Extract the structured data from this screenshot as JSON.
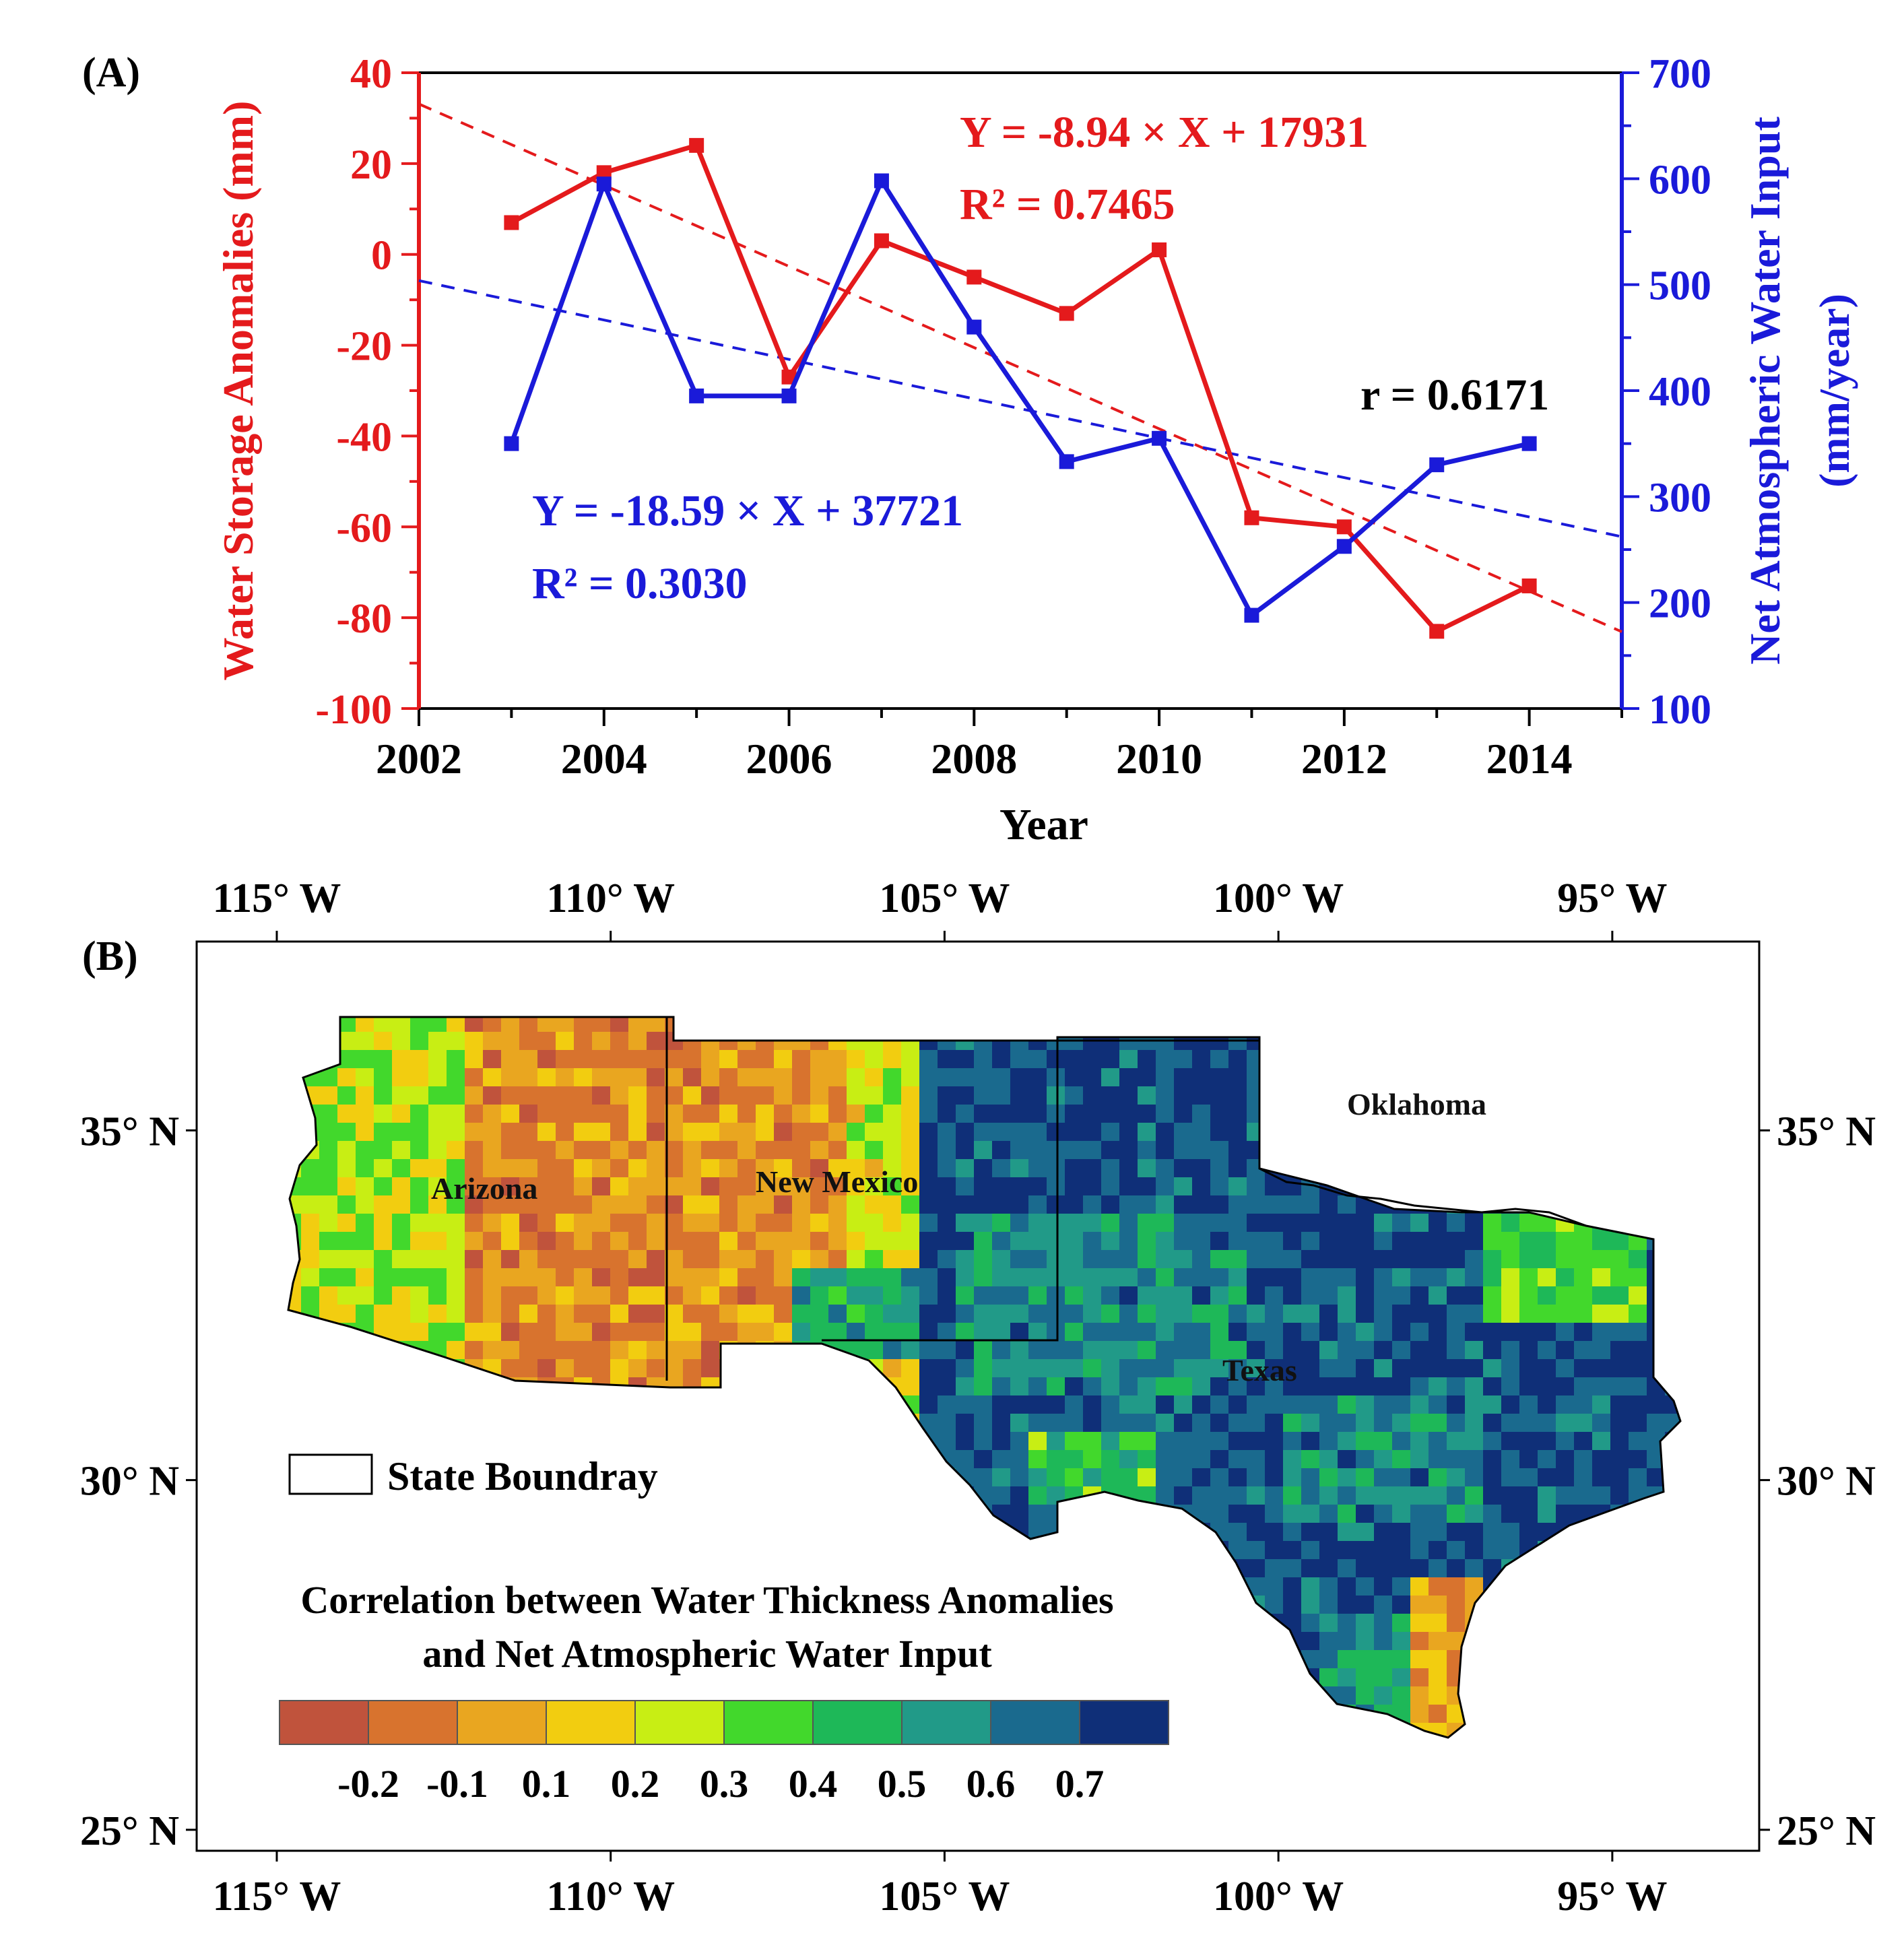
{
  "panel_a": {
    "label": "(A)",
    "xlabel": "Year",
    "x_ticks": [
      "2002",
      "2004",
      "2006",
      "2008",
      "2010",
      "2012",
      "2014"
    ],
    "y_left_label": "Water Storage Anomalies (mm)",
    "y_left_ticks": [
      "40",
      "20",
      "0",
      "-20",
      "-40",
      "-60",
      "-80",
      "-100"
    ],
    "y_right_label_1": "Net Atmospheric Water Input",
    "y_right_label_2": "(mm/year)",
    "y_right_ticks": [
      "700",
      "600",
      "500",
      "400",
      "300",
      "200",
      "100"
    ],
    "eq_red_1": "Y = -8.94 × X + 17931",
    "eq_red_2": "R² = 0.7465",
    "eq_blue_1": "Y = -18.59 × X + 37721",
    "eq_blue_2": "R² = 0.3030",
    "r_label": "r = 0.6171"
  },
  "panel_b": {
    "label": "(B)",
    "lon_ticks": [
      "115° W",
      "110° W",
      "105° W",
      "100° W",
      "95° W"
    ],
    "lat_ticks": [
      "35° N",
      "30° N",
      "25° N"
    ],
    "states": {
      "arizona": "Arizona",
      "new_mexico": "New Mexico",
      "oklahoma": "Oklahoma",
      "texas": "Texas"
    },
    "legend_boundary": "State Boundray",
    "colorbar_title_1": "Correlation between Water Thickness Anomalies",
    "colorbar_title_2": "and Net Atmospheric Water Input",
    "colorbar_ticks": [
      "-0.2",
      "-0.1",
      "0.1",
      "0.2",
      "0.3",
      "0.4",
      "0.5",
      "0.6",
      "0.7"
    ],
    "colorbar_colors": [
      "#c0533c",
      "#d8732e",
      "#e9a620",
      "#f2cd10",
      "#c8ee14",
      "#42d82c",
      "#1eb858",
      "#219a88",
      "#1a6a8e",
      "#0f2f78"
    ]
  },
  "chart_data": [
    {
      "type": "line",
      "title": "",
      "xlabel": "Year",
      "x": [
        2003,
        2004,
        2005,
        2006,
        2007,
        2008,
        2009,
        2010,
        2011,
        2012,
        2013,
        2014
      ],
      "xlim": [
        2002,
        2015
      ],
      "series": [
        {
          "name": "Water Storage Anomalies (mm)",
          "axis": "left",
          "color": "#e41a1c",
          "values": [
            7,
            18,
            24,
            -27,
            3,
            -5,
            -13,
            1,
            -58,
            -60,
            -83,
            -73
          ],
          "trend": {
            "slope": -8.94,
            "intercept": 17931,
            "r2": 0.7465
          }
        },
        {
          "name": "Net Atmospheric Water Input (mm/year)",
          "axis": "right",
          "color": "#1a1ad9",
          "values": [
            350,
            595,
            395,
            395,
            598,
            460,
            333,
            355,
            188,
            253,
            330,
            350
          ],
          "trend": {
            "slope": -18.59,
            "intercept": 37721,
            "r2": 0.303
          }
        }
      ],
      "ylim_left": [
        -100,
        40
      ],
      "ylim_right": [
        100,
        700
      ],
      "correlation_r": 0.6171
    },
    {
      "type": "heatmap",
      "title": "Correlation between Water Thickness Anomalies and Net Atmospheric Water Input",
      "lon_range": [
        -116.2,
        -92.8
      ],
      "lat_range": [
        24.7,
        37.7
      ],
      "legend": "State Boundray",
      "colorbar_bins": [
        -0.3,
        -0.2,
        -0.1,
        0.1,
        0.2,
        0.3,
        0.4,
        0.5,
        0.6,
        0.7,
        0.8
      ]
    }
  ]
}
